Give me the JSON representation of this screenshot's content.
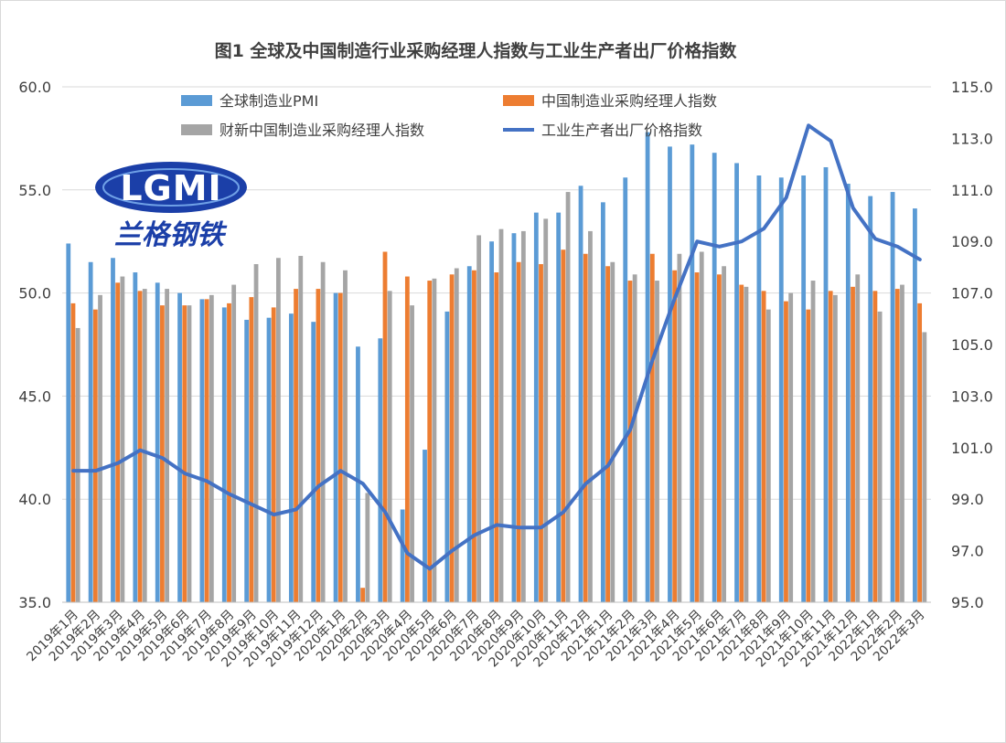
{
  "chart_data": {
    "type": "bar",
    "title": "图1 全球及中国制造行业采购经理人指数与工业生产者出厂价格指数",
    "categories": [
      "2019年1月",
      "2019年2月",
      "2019年3月",
      "2019年4月",
      "2019年5月",
      "2019年6月",
      "2019年7月",
      "2019年8月",
      "2019年9月",
      "2019年10月",
      "2019年11月",
      "2019年12月",
      "2020年1月",
      "2020年2月",
      "2020年3月",
      "2020年4月",
      "2020年5月",
      "2020年6月",
      "2020年7月",
      "2020年8月",
      "2020年9月",
      "2020年10月",
      "2020年11月",
      "2020年12月",
      "2021年1月",
      "2021年2月",
      "2021年3月",
      "2021年4月",
      "2021年5月",
      "2021年6月",
      "2021年7月",
      "2021年8月",
      "2021年9月",
      "2021年10月",
      "2021年11月",
      "2021年12月",
      "2022年1月",
      "2022年2月",
      "2022年3月"
    ],
    "ylim_left": [
      35.0,
      60.0
    ],
    "yticks_left": [
      "35.0",
      "40.0",
      "45.0",
      "50.0",
      "55.0",
      "60.0"
    ],
    "ylim_right": [
      95.0,
      115.0
    ],
    "yticks_right": [
      "95.0",
      "97.0",
      "99.0",
      "101.0",
      "103.0",
      "105.0",
      "107.0",
      "109.0",
      "111.0",
      "113.0",
      "115.0"
    ],
    "grid": true,
    "legend_position": "top",
    "series": [
      {
        "name": "全球制造业PMI",
        "type": "bar",
        "axis": "left",
        "color": "#5b9bd5",
        "values": [
          52.4,
          51.5,
          51.7,
          51.0,
          50.5,
          50.0,
          49.7,
          49.3,
          48.7,
          48.8,
          49.0,
          48.6,
          50.0,
          47.4,
          47.8,
          39.5,
          42.4,
          49.1,
          51.3,
          52.5,
          52.9,
          53.9,
          53.9,
          55.2,
          54.4,
          55.6,
          57.8,
          57.1,
          57.2,
          56.8,
          56.3,
          55.7,
          55.6,
          55.7,
          56.1,
          55.3,
          54.7,
          54.9,
          54.1
        ]
      },
      {
        "name": "中国制造业采购经理人指数",
        "type": "bar",
        "axis": "left",
        "color": "#ed7d31",
        "values": [
          49.5,
          49.2,
          50.5,
          50.1,
          49.4,
          49.4,
          49.7,
          49.5,
          49.8,
          49.3,
          50.2,
          50.2,
          50.0,
          35.7,
          52.0,
          50.8,
          50.6,
          50.9,
          51.1,
          51.0,
          51.5,
          51.4,
          52.1,
          51.9,
          51.3,
          50.6,
          51.9,
          51.1,
          51.0,
          50.9,
          50.4,
          50.1,
          49.6,
          49.2,
          50.1,
          50.3,
          50.1,
          50.2,
          49.5
        ]
      },
      {
        "name": "财新中国制造业采购经理人指数",
        "type": "bar",
        "axis": "left",
        "color": "#a5a5a5",
        "values": [
          48.3,
          49.9,
          50.8,
          50.2,
          50.2,
          49.4,
          49.9,
          50.4,
          51.4,
          51.7,
          51.8,
          51.5,
          51.1,
          40.3,
          50.1,
          49.4,
          50.7,
          51.2,
          52.8,
          53.1,
          53.0,
          53.6,
          54.9,
          53.0,
          51.5,
          50.9,
          50.6,
          51.9,
          52.0,
          51.3,
          50.3,
          49.2,
          50.0,
          50.6,
          49.9,
          50.9,
          49.1,
          50.4,
          48.1
        ]
      },
      {
        "name": "工业生产者出厂价格指数",
        "type": "line",
        "axis": "right",
        "color": "#4472c4",
        "values": [
          100.1,
          100.1,
          100.4,
          100.9,
          100.6,
          100.0,
          99.7,
          99.2,
          98.8,
          98.4,
          98.6,
          99.5,
          100.1,
          99.6,
          98.5,
          96.9,
          96.3,
          97.0,
          97.6,
          98.0,
          97.9,
          97.9,
          98.5,
          99.6,
          100.3,
          101.7,
          104.4,
          106.8,
          109.0,
          108.8,
          109.0,
          109.5,
          110.7,
          113.5,
          112.9,
          110.3,
          109.1,
          108.8,
          108.3
        ]
      }
    ]
  },
  "logo": {
    "latin": "LGMI",
    "chinese": "兰格钢铁"
  }
}
